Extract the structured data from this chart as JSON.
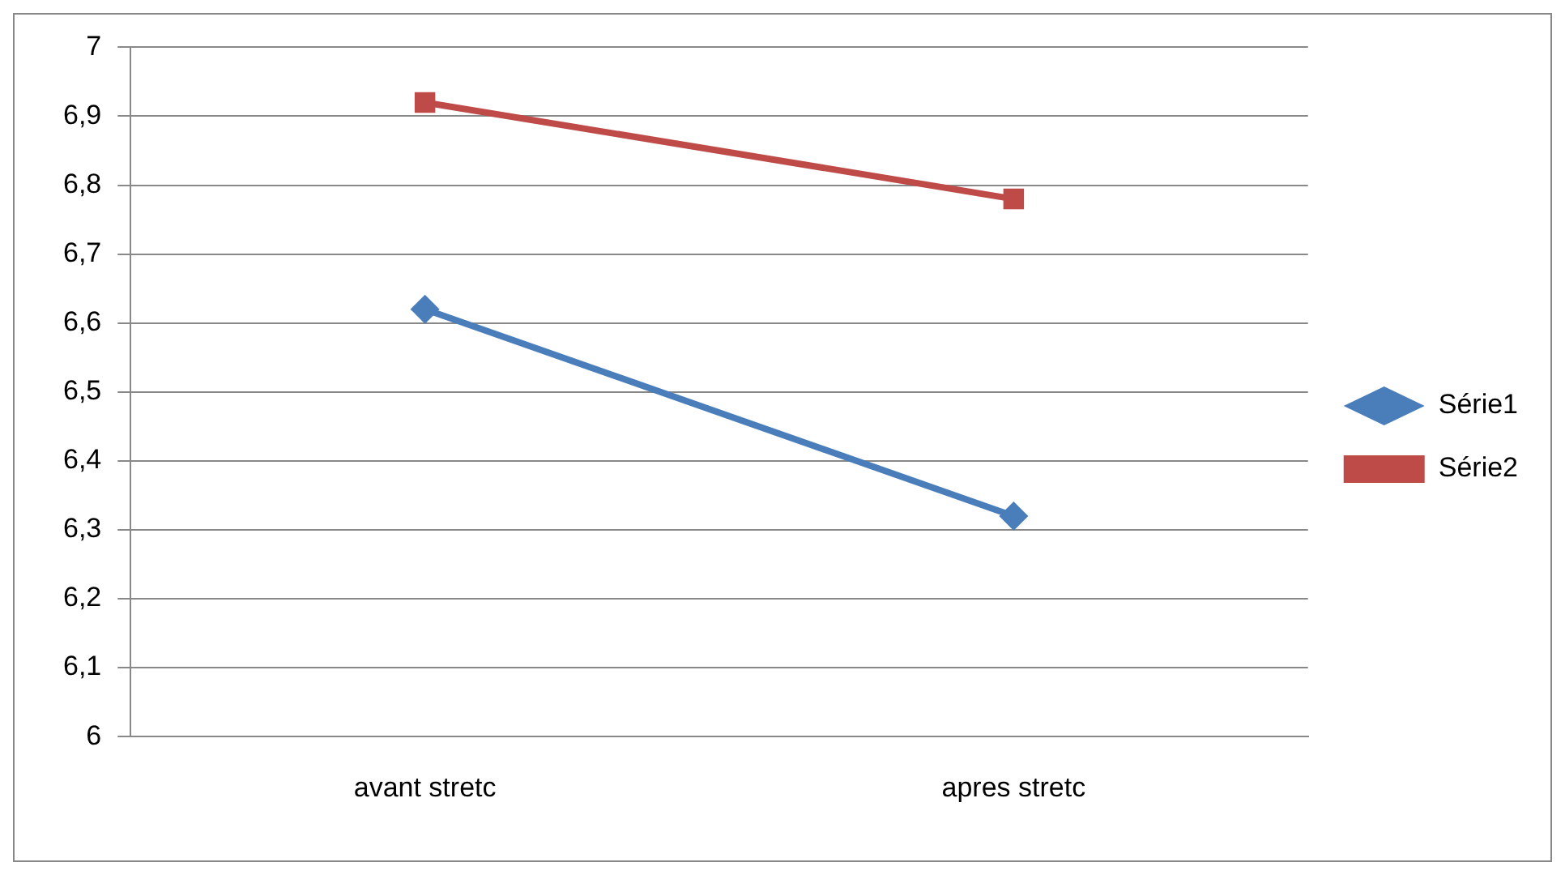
{
  "chart_data": {
    "type": "line",
    "categories": [
      "avant stretc",
      "apres stretc"
    ],
    "series": [
      {
        "name": "Série1",
        "color": "#4a7ebb",
        "values": [
          6.62,
          6.32
        ],
        "marker": "diamond"
      },
      {
        "name": "Série2",
        "color": "#be4b48",
        "values": [
          6.92,
          6.78
        ],
        "marker": "square"
      }
    ],
    "ylim": [
      6,
      7
    ],
    "yticks": [
      6,
      {
        "value": 6.1,
        "label": "6,1"
      },
      {
        "value": 6.2,
        "label": "6,2"
      },
      {
        "value": 6.3,
        "label": "6,3"
      },
      {
        "value": 6.4,
        "label": "6,4"
      },
      {
        "value": 6.5,
        "label": "6,5"
      },
      {
        "value": 6.6,
        "label": "6,6"
      },
      {
        "value": 6.7,
        "label": "6,7"
      },
      {
        "value": 6.8,
        "label": "6,8"
      },
      {
        "value": 6.9,
        "label": "6,9"
      },
      7
    ],
    "grid": "y",
    "legend": "right",
    "line_style": "solid"
  }
}
